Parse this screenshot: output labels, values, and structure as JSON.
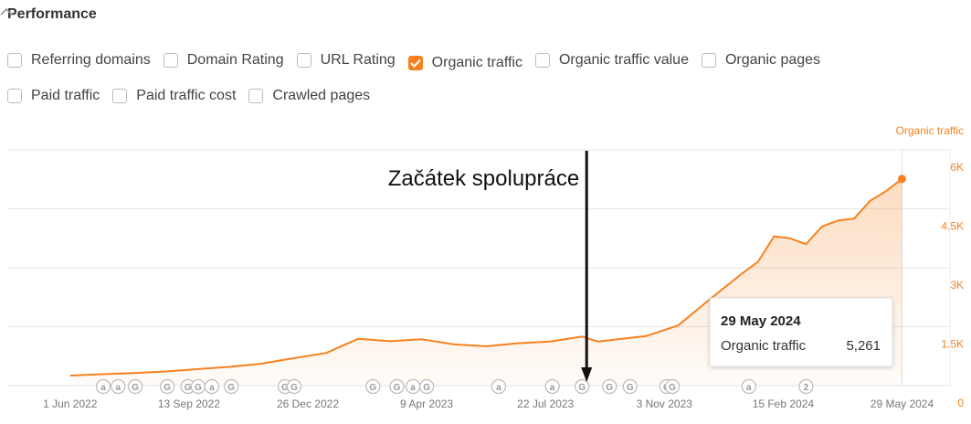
{
  "header": {
    "title": "Performance"
  },
  "metrics": [
    {
      "label": "Referring domains",
      "checked": false
    },
    {
      "label": "Domain Rating",
      "checked": false
    },
    {
      "label": "URL Rating",
      "checked": false
    },
    {
      "label": "Organic traffic",
      "checked": true
    },
    {
      "label": "Organic traffic value",
      "checked": false
    },
    {
      "label": "Organic pages",
      "checked": false
    },
    {
      "label": "Paid traffic",
      "checked": false
    },
    {
      "label": "Paid traffic cost",
      "checked": false
    },
    {
      "label": "Crawled pages",
      "checked": false
    }
  ],
  "chart_data": {
    "type": "area",
    "ylabel": "Organic traffic",
    "color": "#f5821f",
    "x": [
      "2022-06-01",
      "2022-06-29",
      "2022-07-27",
      "2022-08-24",
      "2022-09-21",
      "2022-10-19",
      "2022-11-16",
      "2022-12-14",
      "2023-01-11",
      "2023-02-08",
      "2023-03-08",
      "2023-04-05",
      "2023-05-03",
      "2023-05-31",
      "2023-06-28",
      "2023-07-26",
      "2023-08-23",
      "2023-09-06",
      "2023-09-20",
      "2023-10-18",
      "2023-11-15",
      "2023-12-13",
      "2024-01-10",
      "2024-01-24",
      "2024-02-07",
      "2024-02-21",
      "2024-03-06",
      "2024-03-20",
      "2024-04-03",
      "2024-04-17",
      "2024-05-01",
      "2024-05-15",
      "2024-05-29"
    ],
    "values": [
      255,
      290,
      320,
      360,
      420,
      480,
      560,
      700,
      830,
      1190,
      1130,
      1180,
      1050,
      1000,
      1080,
      1120,
      1250,
      1120,
      1170,
      1260,
      1530,
      2200,
      2850,
      3150,
      3800,
      3750,
      3600,
      4050,
      4200,
      4250,
      4700,
      4950,
      5261
    ],
    "xlim": [
      "2022-04-07",
      "2024-07-10"
    ],
    "xticks": [
      {
        "value": "2022-06-01",
        "label": "1 Jun 2022"
      },
      {
        "value": "2022-09-13",
        "label": "13 Sep 2022"
      },
      {
        "value": "2022-12-26",
        "label": "26 Dec 2022"
      },
      {
        "value": "2023-04-09",
        "label": "9 Apr 2023"
      },
      {
        "value": "2023-07-22",
        "label": "22 Jul 2023"
      },
      {
        "value": "2023-11-03",
        "label": "3 Nov 2023"
      },
      {
        "value": "2024-02-15",
        "label": "15 Feb 2024"
      },
      {
        "value": "2024-05-29",
        "label": "29 May 2024"
      }
    ],
    "ylim": [
      0,
      6000
    ],
    "yticks": [
      0,
      {
        "value": 1500,
        "label": "1.5K"
      },
      {
        "value": 3000,
        "label": "3K"
      },
      {
        "value": 4500,
        "label": "4.5K"
      },
      {
        "value": 6000,
        "label": "6K"
      }
    ],
    "grid": true,
    "annotation": {
      "text": "Začátek spolupráce",
      "x": "2023-08-27"
    },
    "tooltip": {
      "title": "29 May 2024",
      "label": "Organic traffic",
      "x": "2024-05-29",
      "value": 5261,
      "value_label": "5,261"
    },
    "events": [
      {
        "x": "2022-06-30",
        "label": "a"
      },
      {
        "x": "2022-07-13",
        "label": "a"
      },
      {
        "x": "2022-07-28",
        "label": "G"
      },
      {
        "x": "2022-08-25",
        "label": "G"
      },
      {
        "x": "2022-09-12",
        "label": "G"
      },
      {
        "x": "2022-09-21",
        "label": "G"
      },
      {
        "x": "2022-10-03",
        "label": "a"
      },
      {
        "x": "2022-10-20",
        "label": "G"
      },
      {
        "x": "2022-12-06",
        "label": "G"
      },
      {
        "x": "2022-12-14",
        "label": "G"
      },
      {
        "x": "2023-02-21",
        "label": "G"
      },
      {
        "x": "2023-03-14",
        "label": "G"
      },
      {
        "x": "2023-03-28",
        "label": "a"
      },
      {
        "x": "2023-04-09",
        "label": "G"
      },
      {
        "x": "2023-06-11",
        "label": "a"
      },
      {
        "x": "2023-07-28",
        "label": "a"
      },
      {
        "x": "2023-08-23",
        "label": "G"
      },
      {
        "x": "2023-09-16",
        "label": "G"
      },
      {
        "x": "2023-10-04",
        "label": "G"
      },
      {
        "x": "2023-11-05",
        "label": "G"
      },
      {
        "x": "2023-11-10",
        "label": "G"
      },
      {
        "x": "2024-01-16",
        "label": "a"
      },
      {
        "x": "2024-03-06",
        "label": "2"
      }
    ]
  }
}
